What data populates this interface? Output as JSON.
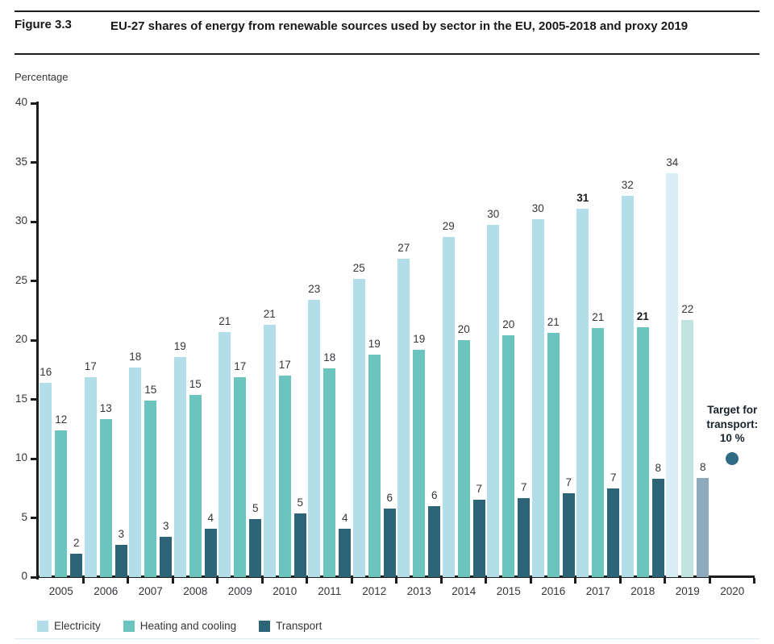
{
  "header": {
    "figure_label": "Figure 3.3",
    "title": "EU-27 shares of energy from renewable sources used by sector in the EU, 2005-2018 and proxy 2019"
  },
  "colors": {
    "electricity": "#b2dde9",
    "electricity_proxy": "#d9edf4",
    "heating": "#6cc4bf",
    "heating_proxy": "#c2e4df",
    "transport": "#2e6477",
    "transport_proxy": "#8ea9bc",
    "target_dot": "#2f6b82",
    "axis": "#1c1c1c"
  },
  "chart_data": {
    "type": "bar",
    "title": "EU-27 shares of energy from renewable sources used by sector in the EU, 2005-2018 and proxy 2019",
    "xlabel": "",
    "ylabel": "Percentage",
    "ylim": [
      0,
      40
    ],
    "yticks": [
      0,
      5,
      10,
      15,
      20,
      25,
      30,
      35,
      40
    ],
    "grid": false,
    "legend_position": "bottom",
    "categories": [
      "2005",
      "2006",
      "2007",
      "2008",
      "2009",
      "2010",
      "2011",
      "2012",
      "2013",
      "2014",
      "2015",
      "2016",
      "2017",
      "2018",
      "2019",
      "2020"
    ],
    "proxy_year": "2019",
    "series": [
      {
        "name": "Electricity",
        "color": "#b2dde9",
        "proxy_color": "#d9edf4",
        "values": [
          16.4,
          16.9,
          17.7,
          18.6,
          20.7,
          21.3,
          23.4,
          25.2,
          26.9,
          28.7,
          29.7,
          30.2,
          31.1,
          32.2,
          34.1,
          null
        ],
        "labels": [
          "16",
          "17",
          "18",
          "19",
          "21",
          "21",
          "23",
          "25",
          "27",
          "29",
          "30",
          "30",
          "31",
          "32",
          "34",
          ""
        ]
      },
      {
        "name": "Heating and cooling",
        "color": "#6cc4bf",
        "proxy_color": "#c2e4df",
        "values": [
          12.4,
          13.3,
          14.9,
          15.4,
          16.9,
          17.0,
          17.6,
          18.8,
          19.2,
          20.0,
          20.4,
          20.6,
          21.0,
          21.1,
          21.7,
          null
        ],
        "labels": [
          "12",
          "13",
          "15",
          "15",
          "17",
          "17",
          "18",
          "19",
          "19",
          "20",
          "20",
          "21",
          "21",
          "21",
          "22",
          ""
        ]
      },
      {
        "name": "Transport",
        "color": "#2e6477",
        "proxy_color": "#8ea9bc",
        "values": [
          2.0,
          2.7,
          3.4,
          4.1,
          4.9,
          5.4,
          4.1,
          5.8,
          6.0,
          6.5,
          6.7,
          7.1,
          7.5,
          8.3,
          8.4,
          null
        ],
        "labels": [
          "2",
          "3",
          "3",
          "4",
          "5",
          "5",
          "4",
          "6",
          "6",
          "7",
          "7",
          "7",
          "7",
          "8",
          "8",
          ""
        ]
      }
    ],
    "bold_labels": [
      {
        "series": "Electricity",
        "year": "2017"
      },
      {
        "series": "Heating and cooling",
        "year": "2018"
      }
    ],
    "annotation": {
      "lines": [
        "Target for",
        "transport:",
        "10 %"
      ],
      "value": 10,
      "year": "2020",
      "dot_color": "#2f6b82"
    },
    "legend": [
      "Electricity",
      "Heating and cooling",
      "Transport"
    ]
  }
}
